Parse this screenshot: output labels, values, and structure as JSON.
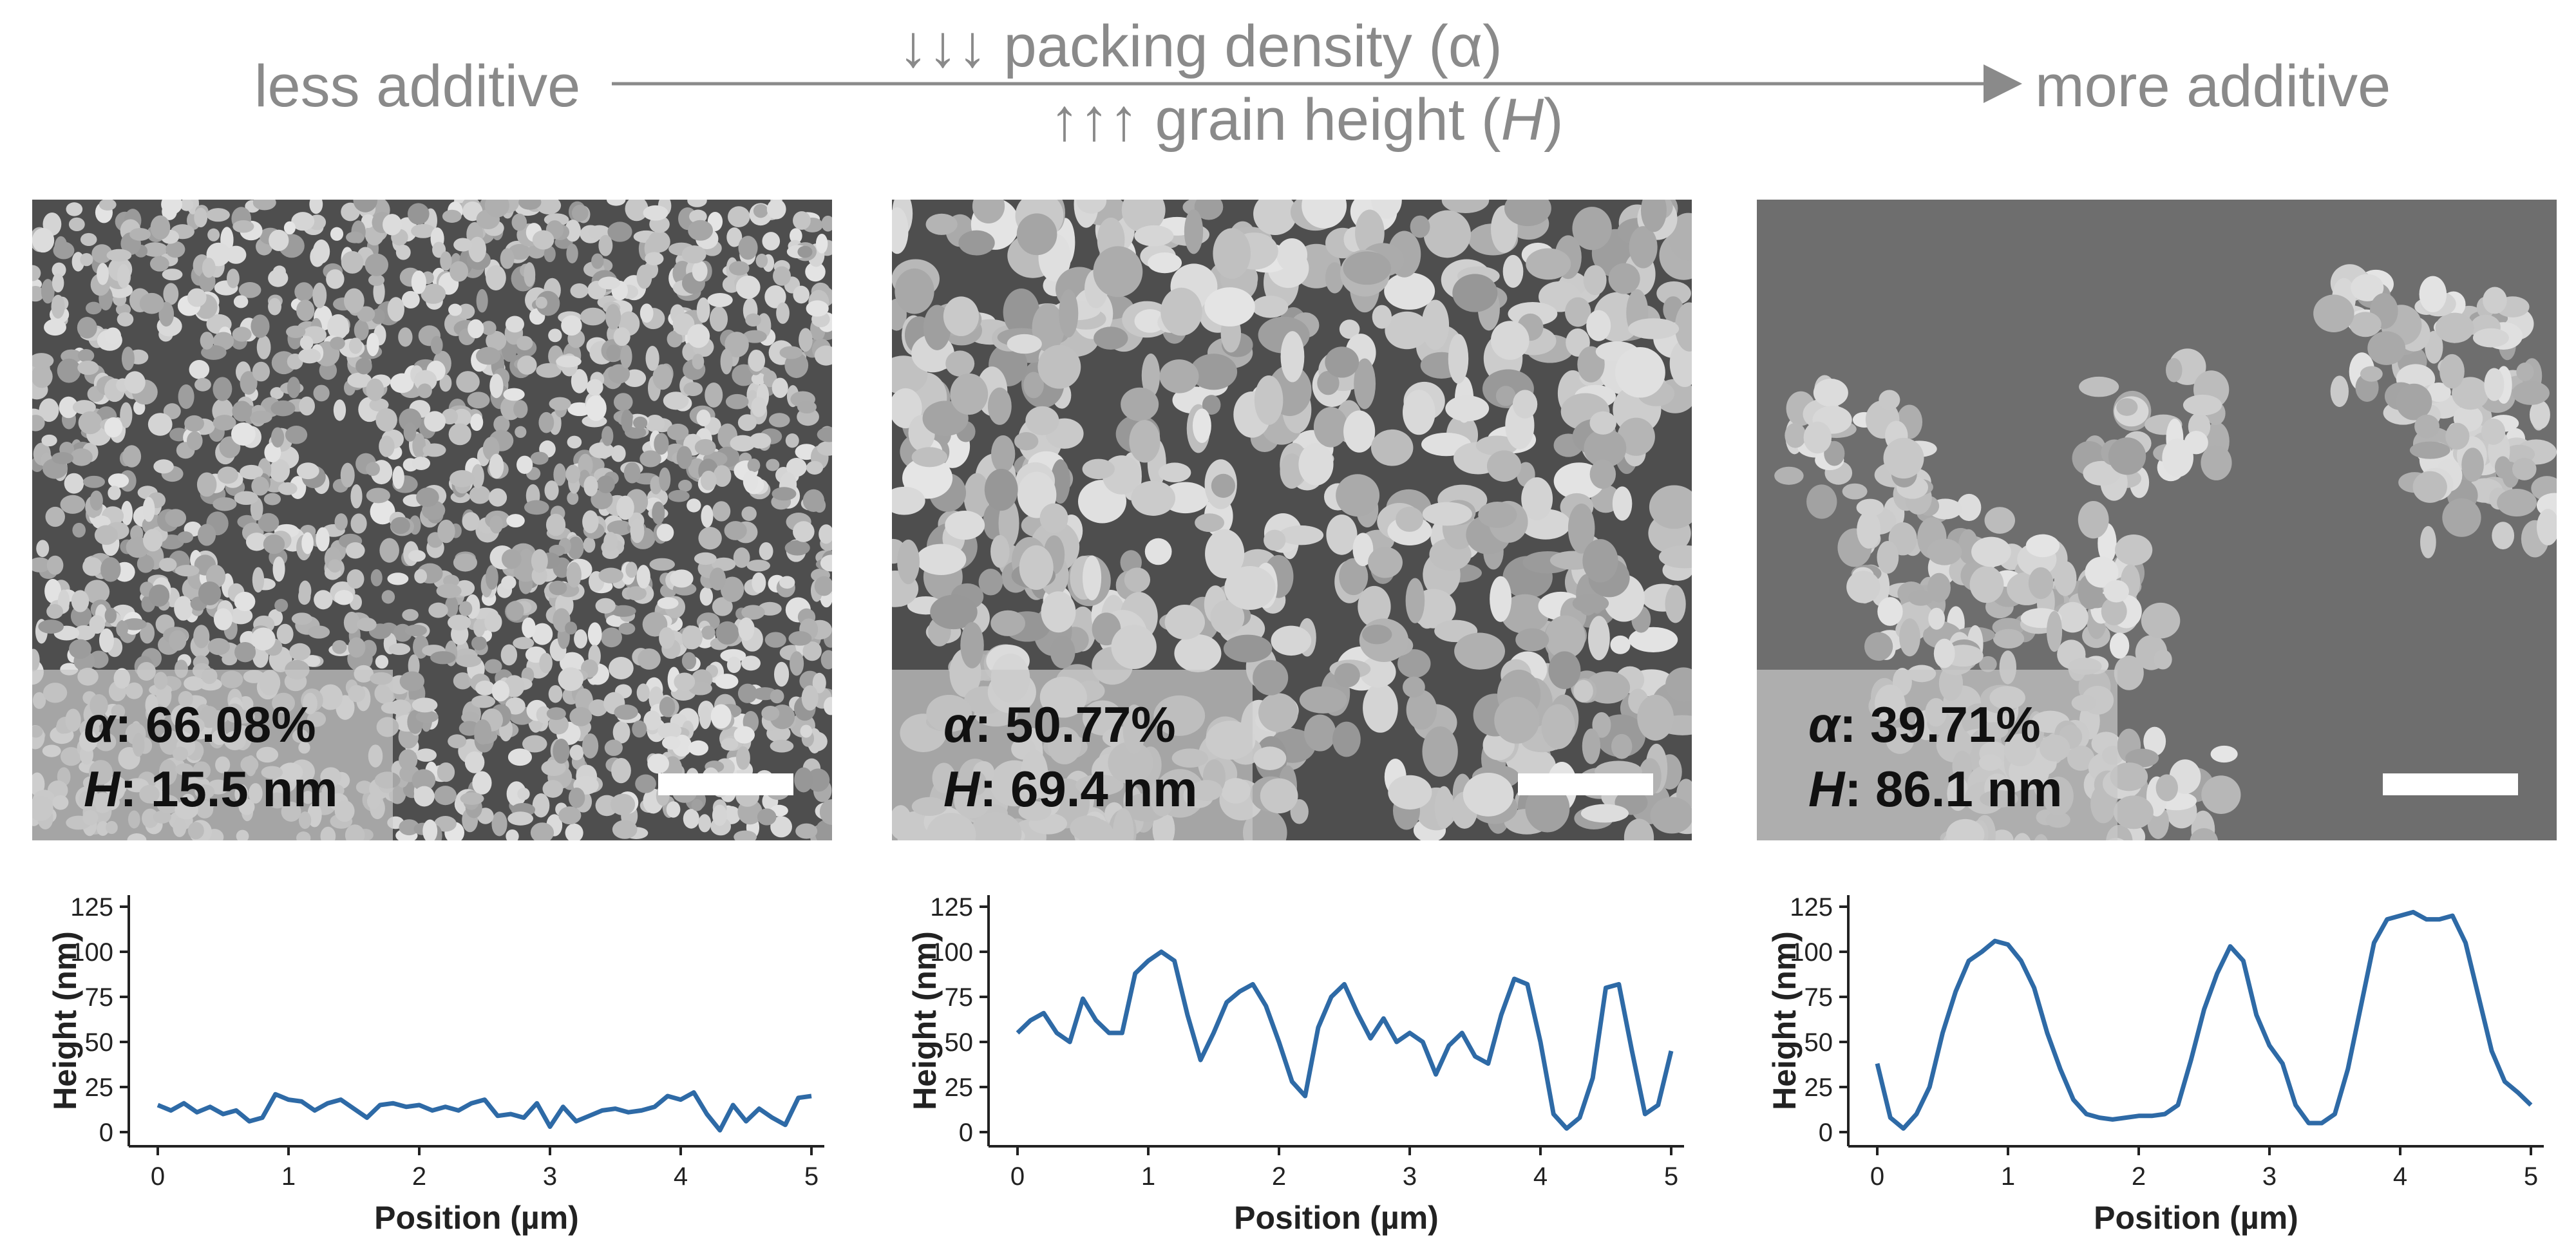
{
  "header": {
    "left_label": "less additive",
    "right_label": "more additive",
    "top_text": "↓↓↓ packing density (α)",
    "bottom_prefix": "↑↑↑ grain height (",
    "bottom_symbol": "H",
    "bottom_suffix": ")"
  },
  "colors": {
    "header_gray": "#8a8a8a",
    "line_blue": "#2e6aa6",
    "axis": "#222222"
  },
  "panels": [
    {
      "alpha_symbol": "α",
      "alpha_value": ": 66.08%",
      "h_symbol": "H",
      "h_value": ": 15.5 nm",
      "density": "high"
    },
    {
      "alpha_symbol": "α",
      "alpha_value": ": 50.77%",
      "h_symbol": "H",
      "h_value": ": 69.4 nm",
      "density": "medium"
    },
    {
      "alpha_symbol": "α",
      "alpha_value": ": 39.71%",
      "h_symbol": "H",
      "h_value": ": 86.1 nm",
      "density": "low"
    }
  ],
  "chart_data": [
    {
      "type": "line",
      "xlabel": "Position (µm)",
      "ylabel": "Height (nm)",
      "xlim": [
        0,
        5
      ],
      "ylim": [
        0,
        125
      ],
      "xticks": [
        "0",
        "1",
        "2",
        "3",
        "4",
        "5"
      ],
      "yticks": [
        "0",
        "25",
        "50",
        "75",
        "100",
        "125"
      ],
      "x": [
        0,
        0.1,
        0.2,
        0.3,
        0.4,
        0.5,
        0.6,
        0.7,
        0.8,
        0.9,
        1.0,
        1.1,
        1.2,
        1.3,
        1.4,
        1.5,
        1.6,
        1.7,
        1.8,
        1.9,
        2.0,
        2.1,
        2.2,
        2.3,
        2.4,
        2.5,
        2.6,
        2.7,
        2.8,
        2.9,
        3.0,
        3.1,
        3.2,
        3.3,
        3.4,
        3.5,
        3.6,
        3.7,
        3.8,
        3.9,
        4.0,
        4.1,
        4.2,
        4.3,
        4.4,
        4.5,
        4.6,
        4.7,
        4.8,
        4.9,
        5.0
      ],
      "values": [
        15,
        12,
        16,
        11,
        14,
        10,
        12,
        6,
        8,
        21,
        18,
        17,
        12,
        16,
        18,
        13,
        8,
        15,
        16,
        14,
        15,
        12,
        14,
        12,
        16,
        18,
        9,
        10,
        8,
        16,
        3,
        14,
        6,
        9,
        12,
        13,
        11,
        12,
        14,
        20,
        18,
        22,
        10,
        1,
        15,
        6,
        13,
        8,
        4,
        19,
        20
      ]
    },
    {
      "type": "line",
      "xlabel": "Position (µm)",
      "ylabel": "Height (nm)",
      "xlim": [
        0,
        5
      ],
      "ylim": [
        0,
        125
      ],
      "xticks": [
        "0",
        "1",
        "2",
        "3",
        "4",
        "5"
      ],
      "yticks": [
        "0",
        "25",
        "50",
        "75",
        "100",
        "125"
      ],
      "x": [
        0,
        0.1,
        0.2,
        0.3,
        0.4,
        0.5,
        0.6,
        0.7,
        0.8,
        0.9,
        1.0,
        1.1,
        1.2,
        1.3,
        1.4,
        1.5,
        1.6,
        1.7,
        1.8,
        1.9,
        2.0,
        2.1,
        2.2,
        2.3,
        2.4,
        2.5,
        2.6,
        2.7,
        2.8,
        2.9,
        3.0,
        3.1,
        3.2,
        3.3,
        3.4,
        3.5,
        3.6,
        3.7,
        3.8,
        3.9,
        4.0,
        4.1,
        4.2,
        4.3,
        4.4,
        4.5,
        4.6,
        4.7,
        4.8,
        4.9,
        5.0
      ],
      "values": [
        55,
        62,
        66,
        55,
        50,
        74,
        62,
        55,
        55,
        88,
        95,
        100,
        95,
        65,
        40,
        55,
        72,
        78,
        82,
        70,
        50,
        28,
        20,
        58,
        75,
        82,
        66,
        52,
        63,
        50,
        55,
        50,
        32,
        48,
        55,
        42,
        38,
        65,
        85,
        82,
        50,
        10,
        2,
        8,
        30,
        80,
        82,
        45,
        10,
        15,
        45
      ]
    },
    {
      "type": "line",
      "xlabel": "Position (µm)",
      "ylabel": "Height (nm)",
      "xlim": [
        0,
        5
      ],
      "ylim": [
        0,
        125
      ],
      "xticks": [
        "0",
        "1",
        "2",
        "3",
        "4",
        "5"
      ],
      "yticks": [
        "0",
        "25",
        "50",
        "75",
        "100",
        "125"
      ],
      "x": [
        0,
        0.1,
        0.2,
        0.3,
        0.4,
        0.5,
        0.6,
        0.7,
        0.8,
        0.9,
        1.0,
        1.1,
        1.2,
        1.3,
        1.4,
        1.5,
        1.6,
        1.7,
        1.8,
        1.9,
        2.0,
        2.1,
        2.2,
        2.3,
        2.4,
        2.5,
        2.6,
        2.7,
        2.8,
        2.9,
        3.0,
        3.1,
        3.2,
        3.3,
        3.4,
        3.5,
        3.6,
        3.7,
        3.8,
        3.9,
        4.0,
        4.1,
        4.2,
        4.3,
        4.4,
        4.5,
        4.6,
        4.7,
        4.8,
        4.9,
        5.0
      ],
      "values": [
        38,
        8,
        2,
        10,
        25,
        55,
        78,
        95,
        100,
        106,
        104,
        95,
        80,
        55,
        35,
        18,
        10,
        8,
        7,
        8,
        9,
        9,
        10,
        15,
        40,
        68,
        88,
        103,
        95,
        65,
        48,
        38,
        15,
        5,
        5,
        10,
        35,
        70,
        105,
        118,
        120,
        122,
        118,
        118,
        120,
        105,
        75,
        45,
        28,
        22,
        15
      ]
    }
  ]
}
